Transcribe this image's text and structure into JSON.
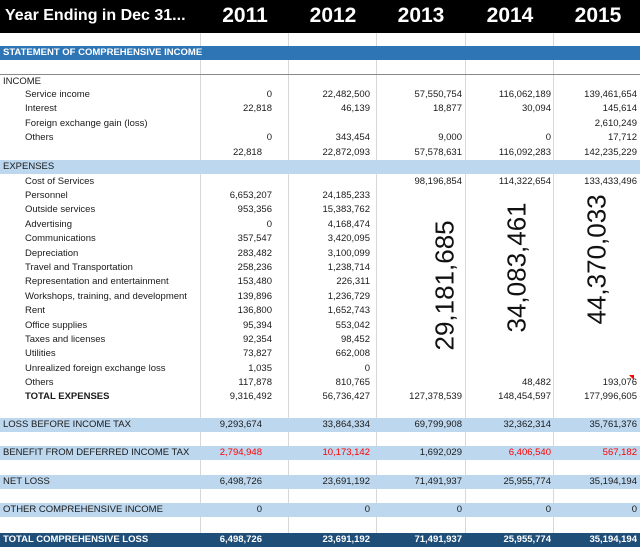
{
  "header": {
    "label": "Year Ending in Dec 31...",
    "years": [
      "2011",
      "2012",
      "2013",
      "2014",
      "2015"
    ]
  },
  "title": "STATEMENT OF COMPREHENSIVE INCOME",
  "income": {
    "heading": "INCOME",
    "rows": [
      {
        "label": "Service income",
        "values": [
          "0",
          "22,482,500",
          "57,550,754",
          "116,062,189",
          "139,461,654"
        ]
      },
      {
        "label": "Interest",
        "values": [
          "22,818",
          "46,139",
          "18,877",
          "30,094",
          "145,614"
        ]
      },
      {
        "label": "Foreign exchange gain (loss)",
        "values": [
          "",
          "",
          "",
          "",
          "2,610,249"
        ]
      },
      {
        "label": "Others",
        "values": [
          "0",
          "343,454",
          "9,000",
          "0",
          "17,712"
        ]
      }
    ],
    "total": [
      "22,818",
      "22,872,093",
      "57,578,631",
      "116,092,283",
      "142,235,229"
    ]
  },
  "expenses": {
    "heading": "EXPENSES",
    "rows": [
      {
        "label": "Cost of Services",
        "values": [
          "",
          "",
          "98,196,854",
          "114,322,654",
          "133,433,496"
        ]
      },
      {
        "label": "Personnel",
        "values": [
          "6,653,207",
          "24,185,233",
          "",
          "",
          ""
        ]
      },
      {
        "label": "Outside services",
        "values": [
          "953,356",
          "15,383,762",
          "",
          "",
          ""
        ]
      },
      {
        "label": "Advertising",
        "values": [
          "0",
          "4,168,474",
          "",
          "",
          ""
        ]
      },
      {
        "label": "Communications",
        "values": [
          "357,547",
          "3,420,095",
          "",
          "",
          ""
        ]
      },
      {
        "label": "Depreciation",
        "values": [
          "283,482",
          "3,100,099",
          "",
          "",
          ""
        ]
      },
      {
        "label": "Travel and Transportation",
        "values": [
          "258,236",
          "1,238,714",
          "",
          "",
          ""
        ]
      },
      {
        "label": "Representation and entertainment",
        "values": [
          "153,480",
          "226,311",
          "",
          "",
          ""
        ]
      },
      {
        "label": "Workshops, training, and development",
        "values": [
          "139,896",
          "1,236,729",
          "",
          "",
          ""
        ]
      },
      {
        "label": "Rent",
        "values": [
          "136,800",
          "1,652,743",
          "",
          "",
          ""
        ]
      },
      {
        "label": "Office supplies",
        "values": [
          "95,394",
          "553,042",
          "",
          "",
          ""
        ]
      },
      {
        "label": "Taxes and licenses",
        "values": [
          "92,354",
          "98,452",
          "",
          "",
          ""
        ]
      },
      {
        "label": "Utilities",
        "values": [
          "73,827",
          "662,008",
          "",
          "",
          ""
        ]
      },
      {
        "label": "Unrealized foreign exchange loss",
        "values": [
          "1,035",
          "0",
          "",
          "",
          ""
        ]
      },
      {
        "label": "Others",
        "values": [
          "117,878",
          "810,765",
          "",
          "48,482",
          "193,076"
        ]
      }
    ],
    "total_label": "TOTAL EXPENSES",
    "total": [
      "9,316,492",
      "56,736,427",
      "127,378,539",
      "148,454,597",
      "177,996,605"
    ],
    "vertical_totals": [
      "29,181,685",
      "34,083,461",
      "44,370,033"
    ]
  },
  "summary": [
    {
      "label": "LOSS BEFORE INCOME TAX",
      "values": [
        "9,293,674",
        "33,864,334",
        "69,799,908",
        "32,362,314",
        "35,761,376"
      ],
      "red": [
        false,
        false,
        false,
        false,
        false
      ]
    },
    {
      "label": "BENEFIT FROM DEFERRED INCOME TAX",
      "values": [
        "2,794,948",
        "10,173,142",
        "1,692,029",
        "6,406,540",
        "567,182"
      ],
      "red": [
        true,
        true,
        false,
        true,
        true
      ]
    },
    {
      "label": "NET LOSS",
      "values": [
        "6,498,726",
        "23,691,192",
        "71,491,937",
        "25,955,774",
        "35,194,194"
      ],
      "red": [
        false,
        false,
        false,
        false,
        false
      ]
    },
    {
      "label": "OTHER COMPREHENSIVE INCOME",
      "values": [
        "0",
        "0",
        "0",
        "0",
        "0"
      ],
      "red": [
        false,
        false,
        false,
        false,
        false
      ]
    },
    {
      "label": "TOTAL COMPREHENSIVE LOSS",
      "values": [
        "6,498,726",
        "23,691,192",
        "71,491,937",
        "25,955,774",
        "35,194,194"
      ],
      "red": [
        false,
        false,
        false,
        false,
        false
      ]
    }
  ],
  "colors": {
    "header_bg": "#000000",
    "title_band": "#2e75b6",
    "light_band": "#bdd7ee",
    "dark_band": "#1f4e79",
    "negative": "#ff0000"
  }
}
